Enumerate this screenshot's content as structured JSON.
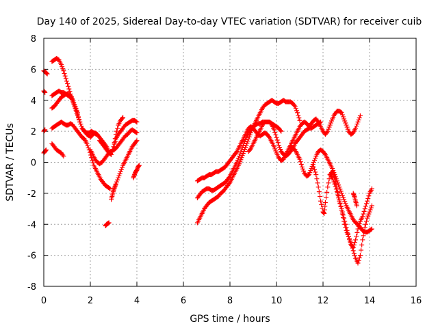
{
  "chart_data": {
    "type": "scatter",
    "title": "Day 140 of 2025, Sidereal Day-to-day VTEC variation (SDTVAR) for receiver cuib",
    "xlabel": "GPS time / hours",
    "ylabel": "SDTVAR / TECUs",
    "xlim": [
      0,
      16
    ],
    "ylim": [
      -8,
      8
    ],
    "xticks": [
      0,
      2,
      4,
      6,
      8,
      10,
      12,
      14,
      16
    ],
    "yticks": [
      -8,
      -6,
      -4,
      -2,
      0,
      2,
      4,
      6,
      8
    ],
    "xtick_labels": [
      "0",
      "2",
      "4",
      "6",
      "8",
      "10",
      "12",
      "14",
      "16"
    ],
    "ytick_labels": [
      "-8",
      "-6",
      "-4",
      "-2",
      "0",
      "2",
      "4",
      "6",
      "8"
    ],
    "grid": true,
    "marker": "plus",
    "color": "#ff0000",
    "series": [
      {
        "x": [
          0.0,
          0.08,
          0.15
        ],
        "y": [
          5.9,
          5.8,
          5.7
        ]
      },
      {
        "x": [
          0.0,
          0.05
        ],
        "y": [
          4.6,
          4.5
        ]
      },
      {
        "x": [
          0.0,
          0.05
        ],
        "y": [
          2.0,
          2.1
        ]
      },
      {
        "x": [
          0.0,
          0.05,
          0.1
        ],
        "y": [
          0.6,
          0.7,
          0.8
        ]
      },
      {
        "x": [
          0.35,
          0.45,
          0.55,
          0.65,
          0.75,
          0.85
        ],
        "y": [
          1.2,
          1.0,
          0.8,
          0.7,
          0.6,
          0.4
        ]
      },
      {
        "x": [
          0.35,
          0.45,
          0.55,
          0.65,
          0.75,
          0.85,
          0.95,
          1.05,
          1.15,
          1.25,
          1.35,
          1.45,
          1.55,
          1.65,
          1.75,
          1.85,
          1.95
        ],
        "y": [
          6.5,
          6.6,
          6.7,
          6.6,
          6.3,
          5.9,
          5.4,
          4.9,
          4.4,
          3.9,
          3.5,
          3.0,
          2.6,
          2.2,
          2.0,
          1.8,
          1.7
        ]
      },
      {
        "x": [
          0.35,
          0.45,
          0.55,
          0.65,
          0.75,
          0.85,
          0.95,
          1.05,
          1.15,
          1.25,
          1.35,
          1.45,
          1.55,
          1.65,
          1.75,
          1.85,
          1.95,
          2.05,
          2.15,
          2.25
        ],
        "y": [
          4.3,
          4.4,
          4.5,
          4.6,
          4.5,
          4.5,
          4.4,
          4.3,
          4.2,
          4.0,
          3.6,
          3.1,
          2.6,
          2.2,
          2.0,
          1.9,
          1.9,
          2.0,
          1.9,
          1.8
        ]
      },
      {
        "x": [
          0.35,
          0.45,
          0.55,
          0.65,
          0.75,
          0.85,
          0.95,
          1.05,
          1.15,
          1.25,
          1.35,
          1.45
        ],
        "y": [
          3.5,
          3.6,
          3.8,
          4.0,
          4.2,
          4.3,
          4.4,
          4.4,
          4.3,
          4.0,
          3.6,
          3.2
        ]
      },
      {
        "x": [
          0.35,
          0.45,
          0.55,
          0.65,
          0.75,
          0.85,
          0.95,
          1.05,
          1.15,
          1.25,
          1.35,
          1.45,
          1.55,
          1.65,
          1.75,
          1.85,
          1.95,
          2.05,
          2.15,
          2.25,
          2.35,
          2.45,
          2.55,
          2.65,
          2.75,
          2.85
        ],
        "y": [
          2.2,
          2.3,
          2.4,
          2.5,
          2.6,
          2.5,
          2.4,
          2.4,
          2.5,
          2.4,
          2.2,
          2.0,
          1.8,
          1.6,
          1.5,
          1.2,
          0.8,
          0.3,
          -0.2,
          -0.5,
          -0.8,
          -1.1,
          -1.3,
          -1.5,
          -1.6,
          -1.7
        ]
      },
      {
        "x": [
          2.0,
          2.1,
          2.2,
          2.3,
          2.4,
          2.5,
          2.6,
          2.7,
          2.8,
          2.9,
          3.0,
          3.1,
          3.2,
          3.3,
          3.4,
          3.5,
          3.6,
          3.7,
          3.8,
          3.9,
          4.0
        ],
        "y": [
          0.8,
          0.5,
          0.2,
          0.0,
          -0.1,
          0.0,
          0.2,
          0.4,
          0.6,
          0.7,
          0.8,
          0.9,
          1.1,
          1.3,
          1.5,
          1.7,
          1.8,
          2.0,
          2.1,
          2.0,
          1.9
        ]
      },
      {
        "x": [
          2.0,
          2.1,
          2.2,
          2.3,
          2.4,
          2.5,
          2.6,
          2.7,
          2.8,
          2.9,
          3.0,
          3.1,
          3.2,
          3.3,
          3.4,
          3.5,
          3.6,
          3.7,
          3.8,
          3.9,
          4.0
        ],
        "y": [
          1.6,
          1.8,
          1.9,
          1.8,
          1.6,
          1.4,
          1.2,
          1.0,
          0.7,
          0.5,
          1.0,
          1.5,
          1.8,
          2.0,
          2.2,
          2.4,
          2.5,
          2.6,
          2.7,
          2.7,
          2.6
        ]
      },
      {
        "x": [
          2.4,
          2.5,
          2.6,
          2.7,
          2.8,
          2.9,
          3.0,
          3.1,
          3.2,
          3.3,
          3.4
        ],
        "y": [
          1.4,
          1.2,
          1.0,
          0.8,
          0.6,
          0.5,
          1.0,
          1.8,
          2.4,
          2.7,
          2.9
        ]
      },
      {
        "x": [
          2.65,
          2.7,
          2.75,
          2.8
        ],
        "y": [
          -4.1,
          -4.0,
          -3.95,
          -3.9
        ]
      },
      {
        "x": [
          2.9,
          2.95,
          3.0,
          3.05,
          3.1,
          3.2,
          3.3,
          3.4,
          3.5,
          3.6,
          3.7,
          3.8,
          3.9,
          4.0
        ],
        "y": [
          -2.4,
          -2.1,
          -1.8,
          -1.6,
          -1.4,
          -1.0,
          -0.6,
          -0.2,
          0.1,
          0.4,
          0.7,
          1.0,
          1.2,
          1.4
        ]
      },
      {
        "x": [
          3.85,
          3.9,
          3.95,
          4.0,
          4.05,
          4.1
        ],
        "y": [
          -1.0,
          -0.8,
          -0.6,
          -0.5,
          -0.3,
          -0.2
        ]
      },
      {
        "x": [
          6.6,
          6.7,
          6.8,
          6.9,
          7.0,
          7.1,
          7.2,
          7.3,
          7.4,
          7.5,
          7.6,
          7.7,
          7.8,
          7.9,
          8.0,
          8.1,
          8.2,
          8.3,
          8.4,
          8.5,
          8.6,
          8.7,
          8.8,
          8.9,
          9.0,
          9.1,
          9.2,
          9.3,
          9.4,
          9.5,
          9.6,
          9.7,
          9.8,
          9.9,
          10.0,
          10.1,
          10.2,
          10.3,
          10.4,
          10.5,
          10.6,
          10.7,
          10.8,
          10.9,
          11.0
        ],
        "y": [
          -3.9,
          -3.6,
          -3.3,
          -3.0,
          -2.8,
          -2.6,
          -2.5,
          -2.4,
          -2.3,
          -2.2,
          -2.0,
          -1.9,
          -1.7,
          -1.5,
          -1.3,
          -1.0,
          -0.7,
          -0.4,
          -0.1,
          0.3,
          0.7,
          1.1,
          1.5,
          1.9,
          2.3,
          2.6,
          2.9,
          3.2,
          3.5,
          3.7,
          3.8,
          3.9,
          4.0,
          3.9,
          3.8,
          3.8,
          3.9,
          4.0,
          3.9,
          3.9,
          3.9,
          3.8,
          3.6,
          3.2,
          2.7
        ]
      },
      {
        "x": [
          6.6,
          6.7,
          6.8,
          6.9,
          7.0,
          7.1,
          7.2,
          7.3,
          7.4,
          7.5,
          7.6,
          7.7,
          7.8,
          7.9,
          8.0,
          8.1,
          8.2,
          8.3,
          8.4,
          8.5,
          8.6,
          8.7,
          8.8,
          8.9,
          9.0,
          9.1,
          9.2,
          9.3,
          9.4,
          9.5,
          9.6,
          9.7,
          9.8,
          9.9,
          10.0,
          10.1,
          10.2
        ],
        "y": [
          -2.3,
          -2.1,
          -1.9,
          -1.8,
          -1.7,
          -1.7,
          -1.8,
          -1.8,
          -1.7,
          -1.6,
          -1.5,
          -1.4,
          -1.3,
          -1.1,
          -0.9,
          -0.6,
          -0.3,
          0.0,
          0.4,
          0.8,
          1.2,
          1.6,
          1.9,
          2.1,
          2.3,
          2.4,
          2.5,
          2.5,
          2.6,
          2.6,
          2.6,
          2.6,
          2.5,
          2.4,
          2.3,
          2.2,
          2.0
        ]
      },
      {
        "x": [
          6.6,
          6.7,
          6.8,
          6.9,
          7.0,
          7.1,
          7.2,
          7.3,
          7.4,
          7.5,
          7.6,
          7.7,
          7.8,
          7.9,
          8.0,
          8.1,
          8.2,
          8.3,
          8.4,
          8.5,
          8.6,
          8.7,
          8.8,
          8.9,
          9.0,
          9.1,
          9.2,
          9.3,
          9.4,
          9.5,
          9.6,
          9.7,
          9.8,
          9.9,
          10.0,
          10.1,
          10.2,
          10.3,
          10.4,
          10.5,
          10.6,
          10.7,
          10.8,
          10.9,
          11.0,
          11.1,
          11.2,
          11.3,
          11.4,
          11.5,
          11.6,
          11.7,
          11.8,
          11.9,
          12.0,
          12.1,
          12.2,
          12.3,
          12.4,
          12.5,
          12.6,
          12.7,
          12.8,
          12.9,
          13.0,
          13.1,
          13.2,
          13.3,
          13.4,
          13.5,
          13.6
        ],
        "y": [
          -1.2,
          -1.1,
          -1.0,
          -1.0,
          -0.9,
          -0.8,
          -0.8,
          -0.7,
          -0.6,
          -0.6,
          -0.5,
          -0.4,
          -0.3,
          -0.1,
          0.1,
          0.3,
          0.5,
          0.7,
          1.0,
          1.3,
          1.6,
          1.9,
          2.2,
          2.3,
          2.2,
          2.0,
          1.8,
          1.7,
          1.8,
          1.9,
          1.8,
          1.6,
          1.3,
          1.0,
          0.6,
          0.3,
          0.1,
          0.2,
          0.5,
          0.8,
          1.1,
          1.4,
          1.7,
          2.0,
          2.3,
          2.5,
          2.6,
          2.5,
          2.3,
          2.5,
          2.7,
          2.8,
          2.6,
          2.3,
          2.0,
          1.8,
          2.0,
          2.4,
          2.8,
          3.1,
          3.3,
          3.3,
          3.2,
          2.8,
          2.4,
          2.0,
          1.8,
          1.9,
          2.2,
          2.6,
          3.0
        ]
      },
      {
        "x": [
          8.8,
          8.9,
          9.0,
          9.1,
          9.2,
          9.3,
          9.4,
          9.5,
          9.6,
          9.7,
          9.8,
          9.9,
          10.0,
          10.1,
          10.2,
          10.3,
          10.4,
          10.5,
          10.6,
          10.7,
          10.8,
          10.9,
          11.0,
          11.1,
          11.2,
          11.3,
          11.4,
          11.5,
          11.6,
          11.7,
          11.8,
          11.9
        ],
        "y": [
          0.7,
          0.9,
          1.2,
          1.5,
          1.8,
          2.1,
          2.4,
          2.6,
          2.6,
          2.6,
          2.4,
          2.1,
          1.6,
          1.1,
          0.7,
          0.5,
          0.4,
          0.5,
          0.7,
          0.9,
          1.2,
          1.4,
          1.6,
          1.8,
          2.0,
          2.1,
          2.2,
          2.2,
          2.3,
          2.4,
          2.5,
          2.6
        ]
      },
      {
        "x": [
          10.6,
          10.7,
          10.8,
          10.9,
          11.0,
          11.1,
          11.2,
          11.3,
          11.4,
          11.5,
          11.6,
          11.7,
          11.8,
          11.9,
          12.0,
          12.1,
          12.2,
          12.3,
          12.4,
          12.5,
          12.6,
          12.7,
          12.8,
          12.9,
          13.0,
          13.1,
          13.2,
          13.3,
          13.4,
          13.5,
          13.6,
          13.7,
          13.8,
          13.9,
          14.0,
          14.1
        ],
        "y": [
          1.0,
          0.9,
          0.8,
          0.5,
          0.2,
          -0.3,
          -0.7,
          -0.9,
          -0.8,
          -0.4,
          0.0,
          0.4,
          0.7,
          0.8,
          0.7,
          0.5,
          0.2,
          -0.1,
          -0.4,
          -0.8,
          -1.2,
          -1.6,
          -2.0,
          -2.4,
          -2.8,
          -3.1,
          -3.4,
          -3.7,
          -3.9,
          -4.0,
          -4.2,
          -4.4,
          -4.5,
          -4.5,
          -4.4,
          -4.3
        ]
      },
      {
        "x": [
          11.6,
          11.7,
          11.8,
          11.9,
          12.0,
          12.05,
          12.1,
          12.2,
          12.3,
          12.4,
          12.5,
          12.6,
          12.7,
          12.8,
          12.9,
          13.0,
          13.1,
          13.2,
          13.3,
          13.4,
          13.5,
          13.6,
          13.7,
          13.8,
          13.9,
          14.0,
          14.1
        ],
        "y": [
          -0.3,
          -0.8,
          -1.6,
          -2.5,
          -3.2,
          -3.3,
          -2.6,
          -1.6,
          -0.8,
          -0.6,
          -1.0,
          -1.7,
          -2.4,
          -3.1,
          -3.8,
          -4.4,
          -4.8,
          -5.2,
          -5.7,
          -6.2,
          -6.5,
          -6.0,
          -5.0,
          -4.2,
          -3.6,
          -3.2,
          -2.8
        ]
      },
      {
        "x": [
          12.3,
          12.4,
          12.5,
          12.6,
          12.7,
          12.8,
          12.9,
          13.0,
          13.1,
          13.2,
          13.3,
          13.4,
          13.5,
          13.6,
          13.7,
          13.8,
          13.9,
          14.0,
          14.1
        ],
        "y": [
          -0.8,
          -1.0,
          -1.4,
          -1.9,
          -2.5,
          -3.0,
          -3.6,
          -4.2,
          -4.8,
          -5.3,
          -5.5,
          -5.0,
          -4.3,
          -3.8,
          -3.5,
          -3.0,
          -2.5,
          -2.0,
          -1.7
        ]
      },
      {
        "x": [
          13.3,
          13.35,
          13.4,
          13.45
        ],
        "y": [
          -2.0,
          -2.2,
          -2.5,
          -2.8
        ]
      }
    ]
  }
}
